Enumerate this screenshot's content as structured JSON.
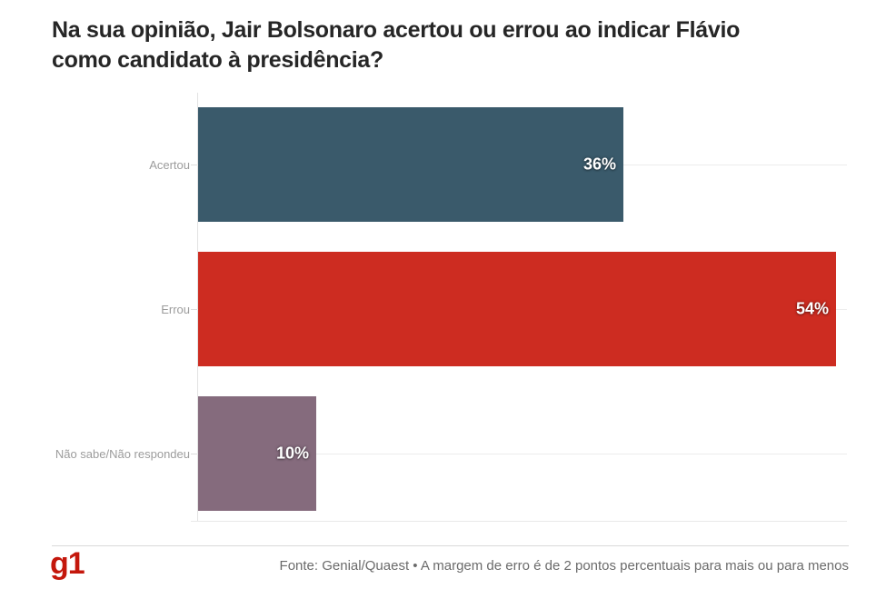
{
  "page": {
    "title": "Na sua opinião, Jair Bolsonaro acertou ou errou ao indicar Flávio como candidato à presidência?",
    "title_lines": [
      "Na sua opinião, Jair Bolsonaro acertou ou errou ao indicar Flávio",
      "como candidato à presidência?"
    ],
    "footer": {
      "logo_text": "g1",
      "source_text": "Fonte: Genial/Quaest • A margem de erro é de 2 pontos percentuais para mais ou para menos"
    }
  },
  "chart_data": {
    "type": "bar",
    "orientation": "horizontal",
    "title": "Na sua opinião, Jair Bolsonaro acertou ou errou ao indicar Flávio como candidato à presidência?",
    "categories": [
      "Acertou",
      "Errou",
      "Não sabe/Não respondeu"
    ],
    "values": [
      36,
      54,
      10
    ],
    "value_labels": [
      "36%",
      "54%",
      "10%"
    ],
    "bar_colors": [
      "#3a5a6b",
      "#cd2c21",
      "#856b7d"
    ],
    "xlabel": "",
    "ylabel": "",
    "xlim": [
      0,
      55
    ],
    "grid": true,
    "legend": false,
    "source": "Fonte: Genial/Quaest • A margem de erro é de 2 pontos percentuais para mais ou para menos"
  },
  "colors": {
    "accent_red": "#cd2c21",
    "accent_teal": "#3a5a6b",
    "accent_mauve": "#856b7d",
    "logo_red": "#c4170c",
    "title_text": "#262626",
    "label_text": "#9c9c9c",
    "source_text": "#6b6b6b",
    "gridline": "#ededed"
  }
}
